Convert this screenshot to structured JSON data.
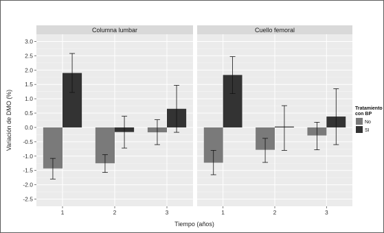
{
  "chart_data": {
    "type": "bar",
    "ylabel": "Variación de DMO (%)",
    "xlabel": "Tiempo (años)",
    "ylim": [
      -2.75,
      3.25
    ],
    "yticks": [
      "3.0",
      "2.5",
      "2.0",
      "1.5",
      "1.0",
      "0.5",
      "0.0",
      "-0.5",
      "-1.0",
      "-1.5",
      "-2.0",
      "-2.5"
    ],
    "categories": [
      "1",
      "2",
      "3"
    ],
    "legend": {
      "title": "Tratamiento con BP",
      "title_lines": [
        "Tratamiento",
        "con BP"
      ],
      "placement": "right",
      "items": [
        {
          "label": "No",
          "color": "#7a7a7a"
        },
        {
          "label": "SI",
          "color": "#333333"
        }
      ]
    },
    "grid": true,
    "panels": [
      {
        "title": "Columna lumbar",
        "series": [
          {
            "name": "No",
            "values": [
              -1.43,
              -1.25,
              -0.17
            ],
            "err_low": [
              -1.8,
              -1.57,
              -0.6
            ],
            "err_high": [
              -1.08,
              -0.95,
              0.27
            ]
          },
          {
            "name": "SI",
            "values": [
              1.9,
              -0.16,
              0.65
            ],
            "err_low": [
              1.22,
              -0.72,
              -0.17
            ],
            "err_high": [
              2.58,
              0.39,
              1.47
            ]
          }
        ]
      },
      {
        "title": "Cuello femoral",
        "series": [
          {
            "name": "No",
            "values": [
              -1.23,
              -0.78,
              -0.28
            ],
            "err_low": [
              -1.65,
              -1.22,
              -0.78
            ],
            "err_high": [
              -0.8,
              -0.38,
              0.18
            ]
          },
          {
            "name": "SI",
            "values": [
              1.83,
              0.03,
              0.38
            ],
            "err_low": [
              1.18,
              -0.8,
              -0.6
            ],
            "err_high": [
              2.47,
              0.76,
              1.35
            ]
          }
        ]
      }
    ]
  }
}
